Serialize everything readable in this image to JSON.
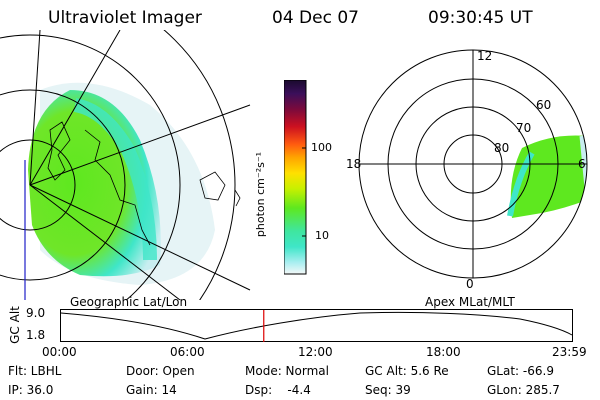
{
  "header": {
    "title": "Ultraviolet Imager",
    "date": "04 Dec 07",
    "time": "09:30:45 UT"
  },
  "colorbar": {
    "label": "photon cm⁻²s⁻¹",
    "ticks": [
      "100",
      "10"
    ]
  },
  "polar": {
    "hour_labels": [
      "12",
      "18",
      "6",
      "0"
    ],
    "lat_labels": [
      "60",
      "70",
      "80"
    ]
  },
  "panels": {
    "left_caption": "Geographic Lat/Lon",
    "right_caption": "Apex MLat/MLT"
  },
  "altitude_plot": {
    "ylabel": "GC Alt",
    "y_ticks": [
      "9.0",
      "1.8"
    ],
    "x_ticks": [
      "00:00",
      "06:00",
      "12:00",
      "18:00",
      "23:59"
    ],
    "current_time_fraction": 0.397
  },
  "info": {
    "filter": "Flt: LBHL",
    "ip": "IP: 36.0",
    "door": "Door: Open",
    "gain": "Gain: 14",
    "mode": "Mode: Normal",
    "dsp": "Dsp:    -4.4",
    "gc_alt": "GC Alt: 5.6 Re",
    "seq": "Seq: 39",
    "glat": "GLat: -66.9",
    "glon": "GLon: 285.7"
  },
  "colors": {
    "aurora_green": "#5ee81f",
    "aurora_cyan": "#3fe6c8",
    "orbit_marker": "#dd0000",
    "meridian_blue": "#1e1ec8"
  }
}
